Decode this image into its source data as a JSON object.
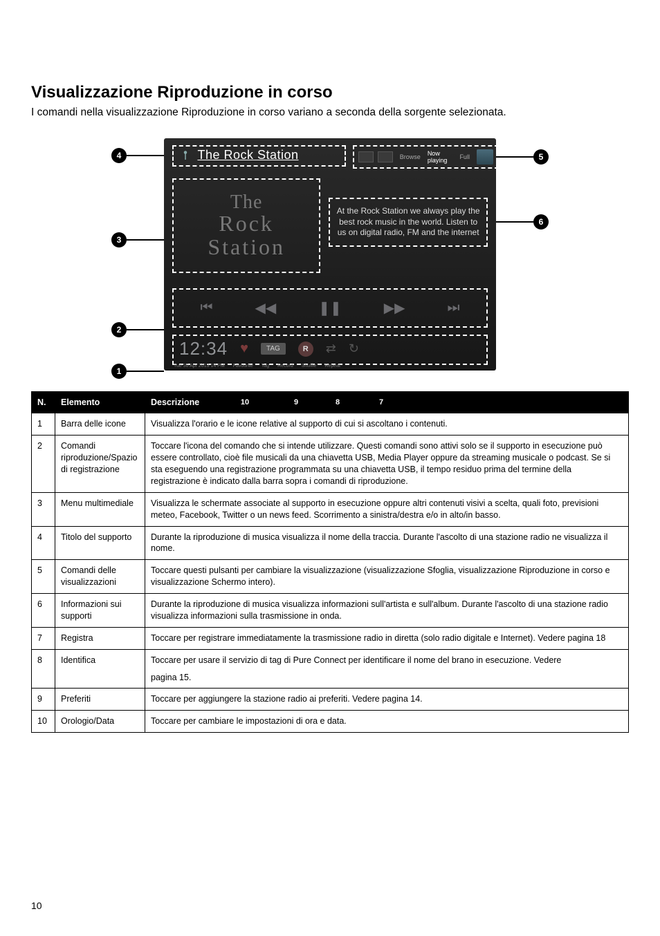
{
  "heading": "Visualizzazione Riproduzione in corso",
  "intro": "I comandi nella visualizzazione Riproduzione in corso variano a seconda della sorgente selezionata.",
  "footer_page": "10",
  "screen": {
    "title": "The Rock Station",
    "top_right": {
      "browse": "Browse",
      "now_playing": "Now playing",
      "full": "Full"
    },
    "art_line1": "The",
    "art_line2": "Rock",
    "art_line3": "Station",
    "info_text": "At the Rock Station we always play the best rock music in the world. Listen to us on digital radio, FM and the internet",
    "bottom": {
      "clock": "12:34",
      "date_small": "Tue 30 Apr 2013 14 PM",
      "fav_small": "Favourite",
      "tag": "TAG",
      "tag_small": "Tag",
      "record": "R",
      "record_small": "Record",
      "shuffle_small": "Shuffle",
      "repeat_small": "Repeat"
    }
  },
  "callouts": {
    "c1": "1",
    "c2": "2",
    "c3": "3",
    "c4": "4",
    "c5": "5",
    "c6": "6",
    "c7": "7",
    "c8": "8",
    "c9": "9",
    "c10": "10"
  },
  "table_headers": {
    "n": "N.",
    "el": "Elemento",
    "desc": "Descrizione"
  },
  "rows": [
    {
      "n": "1",
      "el": "Barra delle icone",
      "desc": "Visualizza l'orario e le icone relative al supporto di cui si ascoltano i contenuti."
    },
    {
      "n": "2",
      "el": "Comandi riproduzione/Spazio di registrazione",
      "desc": "Toccare l'icona del comando che si intende utilizzare. Questi comandi sono attivi solo se il supporto in esecuzione può essere controllato, cioè file musicali da una chiavetta USB, Media Player oppure da streaming musicale o podcast. Se si sta eseguendo una registrazione programmata su una chiavetta USB, il tempo residuo prima del termine della registrazione è indicato dalla barra sopra i comandi di riproduzione."
    },
    {
      "n": "3",
      "el": "Menu multimediale",
      "desc": "Visualizza le schermate associate al supporto in esecuzione oppure altri contenuti visivi a scelta, quali foto, previsioni meteo, Facebook, Twitter o un news feed. Scorrimento a sinistra/destra e/o in alto/in basso."
    },
    {
      "n": "4",
      "el": "Titolo del supporto",
      "desc": "Durante la riproduzione di musica visualizza il nome della traccia. Durante l'ascolto di una stazione radio ne visualizza il nome."
    },
    {
      "n": "5",
      "el": "Comandi delle visualizzazioni",
      "desc": "Toccare questi pulsanti per cambiare la visualizzazione (visualizzazione Sfoglia, visualizzazione Riproduzione in corso e visualizzazione Schermo intero)."
    },
    {
      "n": "6",
      "el": "Informazioni sui supporti",
      "desc": "Durante la riproduzione di musica visualizza informazioni sull'artista e sull'album. Durante l'ascolto di una stazione radio visualizza informazioni sulla trasmissione in onda."
    },
    {
      "n": "7",
      "el": "Registra",
      "desc": "Toccare per registrare immediatamente la trasmissione radio in diretta (solo radio digitale e Internet). Vedere pagina 18"
    },
    {
      "n": "8",
      "el": "Identifica",
      "desc": "Toccare per usare il servizio di tag di Pure Connect per identificare il nome del brano in esecuzione. Vedere pagina 15."
    },
    {
      "n": "9",
      "el": "Preferiti",
      "desc": "Toccare per aggiungere la stazione radio ai preferiti. Vedere pagina 14."
    },
    {
      "n": "10",
      "el": "Orologio/Data",
      "desc": "Toccare per cambiare le impostazioni di ora e data."
    }
  ]
}
